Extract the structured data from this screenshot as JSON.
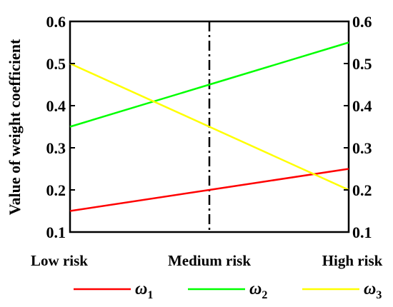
{
  "chart_data": {
    "type": "line",
    "categories": [
      "Low risk",
      "Medium risk",
      "High risk"
    ],
    "ylabel": "Value of weight coefficient",
    "ylim": [
      0.1,
      0.6
    ],
    "yticks": [
      "0.1",
      "0.2",
      "0.3",
      "0.4",
      "0.5",
      "0.6"
    ],
    "y2ticks": [
      "0.1",
      "0.2",
      "0.3",
      "0.4",
      "0.5",
      "0.6"
    ],
    "grid": false,
    "legend_position": "bottom",
    "reference_line": {
      "at_category": "Medium risk",
      "style": "dash-dot",
      "color": "#000000"
    },
    "series": [
      {
        "name": "ω",
        "subscript": "1",
        "color": "#ff0000",
        "values": [
          0.15,
          0.2,
          0.25
        ]
      },
      {
        "name": "ω",
        "subscript": "2",
        "color": "#00ff00",
        "values": [
          0.35,
          0.45,
          0.55
        ]
      },
      {
        "name": "ω",
        "subscript": "3",
        "color": "#ffff00",
        "values": [
          0.5,
          0.35,
          0.2
        ]
      }
    ]
  }
}
